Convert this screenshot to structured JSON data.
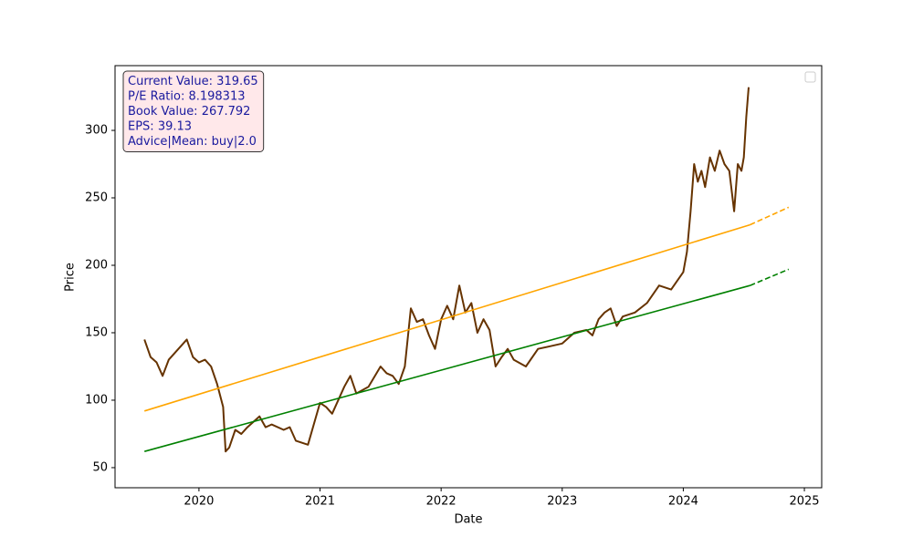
{
  "chart_data": {
    "type": "line",
    "xlabel": "Date",
    "ylabel": "Price",
    "xlim": [
      2019.307,
      2025.143
    ],
    "ylim": [
      35.1,
      348
    ],
    "xticks": [
      2020,
      2021,
      2022,
      2023,
      2024,
      2025
    ],
    "yticks": [
      50,
      100,
      150,
      200,
      250,
      300
    ],
    "legend": "upper right",
    "annotation": [
      "Current Value: 319.65",
      "P/E Ratio: 8.198313",
      "Book Value: 267.792",
      "EPS: 39.13",
      "Advice|Mean: buy|2.0"
    ],
    "series": [
      {
        "color": "#663300",
        "dash": false,
        "x": [
          2019.55,
          2019.6,
          2019.65,
          2019.7,
          2019.75,
          2019.8,
          2019.85,
          2019.9,
          2019.95,
          2020.0,
          2020.05,
          2020.1,
          2020.15,
          2020.2,
          2020.22,
          2020.25,
          2020.3,
          2020.35,
          2020.4,
          2020.5,
          2020.55,
          2020.6,
          2020.7,
          2020.75,
          2020.8,
          2020.9,
          2021.0,
          2021.05,
          2021.1,
          2021.2,
          2021.25,
          2021.3,
          2021.4,
          2021.5,
          2021.55,
          2021.6,
          2021.65,
          2021.7,
          2021.75,
          2021.8,
          2021.85,
          2021.9,
          2021.95,
          2022.0,
          2022.05,
          2022.1,
          2022.15,
          2022.2,
          2022.25,
          2022.3,
          2022.35,
          2022.4,
          2022.45,
          2022.5,
          2022.55,
          2022.6,
          2022.7,
          2022.8,
          2022.9,
          2023.0,
          2023.1,
          2023.2,
          2023.25,
          2023.3,
          2023.35,
          2023.4,
          2023.45,
          2023.5,
          2023.6,
          2023.7,
          2023.8,
          2023.9,
          2024.0,
          2024.03,
          2024.06,
          2024.09,
          2024.12,
          2024.15,
          2024.18,
          2024.22,
          2024.26,
          2024.3,
          2024.34,
          2024.38,
          2024.42,
          2024.45,
          2024.48,
          2024.5,
          2024.52,
          2024.54
        ],
        "values": [
          145,
          132,
          128,
          118,
          130,
          135,
          140,
          145,
          132,
          128,
          130,
          125,
          112,
          95,
          62,
          65,
          78,
          75,
          80,
          88,
          80,
          82,
          78,
          80,
          70,
          67,
          98,
          95,
          90,
          110,
          118,
          105,
          110,
          125,
          120,
          118,
          112,
          125,
          168,
          158,
          160,
          148,
          138,
          160,
          170,
          160,
          185,
          165,
          172,
          150,
          160,
          152,
          125,
          132,
          138,
          130,
          125,
          138,
          140,
          142,
          150,
          152,
          148,
          160,
          165,
          168,
          155,
          162,
          165,
          172,
          185,
          182,
          195,
          210,
          240,
          275,
          262,
          270,
          258,
          280,
          270,
          285,
          275,
          270,
          240,
          275,
          270,
          280,
          310,
          332
        ]
      },
      {
        "color": "#ffa500",
        "dash": false,
        "x": [
          2019.55,
          2024.55
        ],
        "values": [
          92,
          230
        ]
      },
      {
        "color": "#ffa500",
        "dash": true,
        "x": [
          2024.55,
          2024.87
        ],
        "values": [
          230,
          243
        ]
      },
      {
        "color": "#008000",
        "dash": false,
        "x": [
          2019.55,
          2024.55
        ],
        "values": [
          62,
          185
        ]
      },
      {
        "color": "#008000",
        "dash": true,
        "x": [
          2024.55,
          2024.87
        ],
        "values": [
          185,
          197
        ]
      }
    ]
  }
}
